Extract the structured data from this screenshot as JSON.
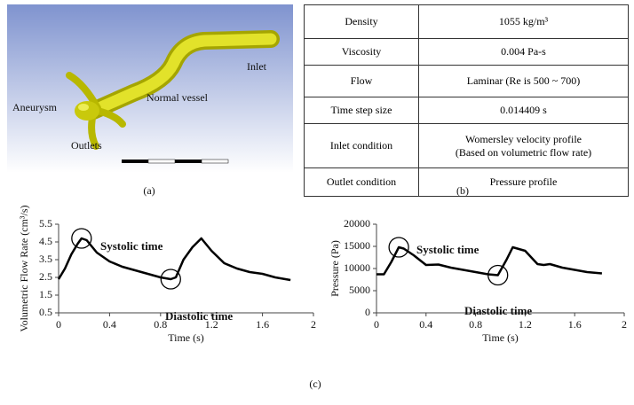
{
  "panel_a": {
    "labels": [
      "Inlet",
      "Normal vessel",
      "Aneurysm",
      "Outlets"
    ]
  },
  "table": {
    "rows": [
      [
        "Density",
        "1055 kg/m³"
      ],
      [
        "Viscosity",
        "0.004 Pa-s"
      ],
      [
        "Flow",
        "Laminar (Re is 500 ~ 700)"
      ],
      [
        "Time step size",
        "0.014409 s"
      ],
      [
        "Inlet condition",
        [
          "Womersley velocity profile",
          "(Based on volumetric flow rate)"
        ]
      ],
      [
        "Outlet condition",
        "Pressure profile"
      ]
    ]
  },
  "captions": [
    "(a)",
    "(b)",
    "(c)"
  ],
  "chart_data": [
    {
      "type": "line",
      "x_label": "Time (s)",
      "y_label": "Volumetric Flow Rate (cm³/s)",
      "color": "#000000",
      "x": [
        0,
        0.05,
        0.1,
        0.15,
        0.18,
        0.22,
        0.3,
        0.4,
        0.5,
        0.6,
        0.7,
        0.8,
        0.88,
        0.92,
        0.98,
        1.05,
        1.12,
        1.2,
        1.3,
        1.4,
        1.5,
        1.6,
        1.7,
        1.82
      ],
      "values": [
        2.4,
        3.0,
        3.8,
        4.4,
        4.7,
        4.6,
        3.9,
        3.4,
        3.1,
        2.9,
        2.7,
        2.5,
        2.4,
        2.5,
        3.5,
        4.2,
        4.7,
        4.0,
        3.3,
        3.0,
        2.8,
        2.7,
        2.5,
        2.35
      ],
      "xlim": [
        0,
        2
      ],
      "xticks": [
        0,
        0.4,
        0.8,
        1.2,
        1.6,
        2
      ],
      "ylim": [
        0.5,
        5.5
      ],
      "yticks": [
        0.5,
        1.5,
        2.5,
        3.5,
        4.5,
        5.5
      ],
      "annotations": [
        "Systolic time",
        "Diastolic time"
      ]
    },
    {
      "type": "line",
      "x_label": "Time (s)",
      "y_label": "Pressure (Pa)",
      "color": "#000000",
      "x": [
        0,
        0.06,
        0.12,
        0.18,
        0.22,
        0.3,
        0.4,
        0.5,
        0.6,
        0.7,
        0.8,
        0.9,
        0.98,
        1.05,
        1.1,
        1.2,
        1.3,
        1.35,
        1.4,
        1.5,
        1.6,
        1.7,
        1.82
      ],
      "values": [
        8700,
        8700,
        11500,
        14800,
        14500,
        13000,
        10800,
        10900,
        10200,
        9700,
        9200,
        8700,
        8500,
        12000,
        14800,
        14000,
        11000,
        10800,
        11000,
        10200,
        9700,
        9200,
        8900
      ],
      "xlim": [
        0,
        2
      ],
      "xticks": [
        0,
        0.4,
        0.8,
        1.2,
        1.6,
        2
      ],
      "ylim": [
        0,
        20000
      ],
      "yticks": [
        0,
        5000,
        10000,
        15000,
        20000
      ],
      "annotations": [
        "Systolic time",
        "Diastolic time"
      ]
    }
  ]
}
